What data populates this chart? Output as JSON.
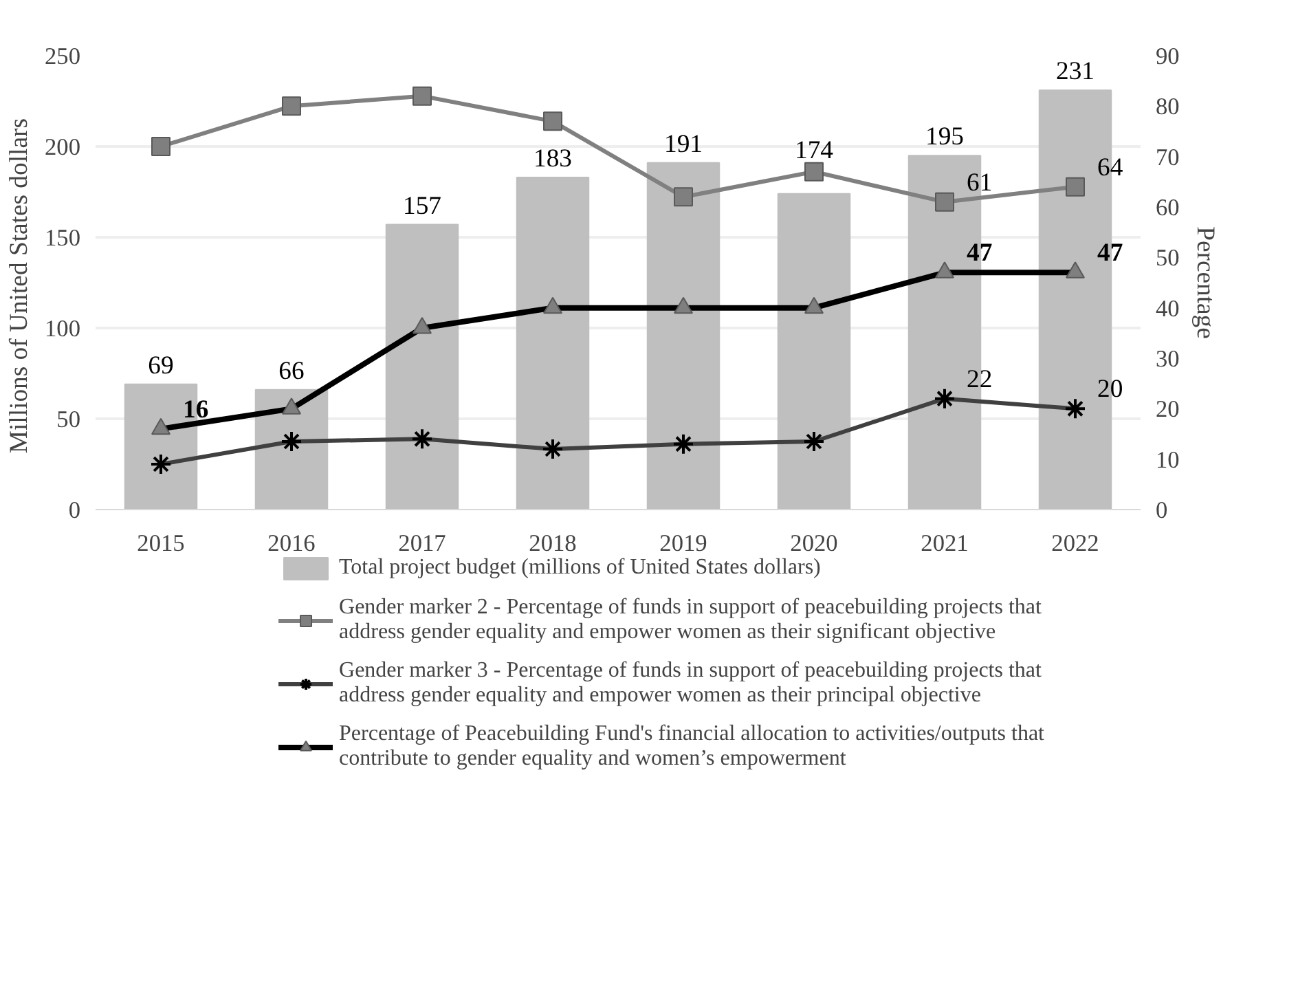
{
  "chart_data": {
    "type": "bar",
    "categories": [
      "2015",
      "2016",
      "2017",
      "2018",
      "2019",
      "2020",
      "2021",
      "2022"
    ],
    "ylabel": "Millions  of United States dollars",
    "y2label": "Percentage",
    "ylim": [
      0,
      250
    ],
    "yticks": [
      0,
      50,
      100,
      150,
      200,
      250
    ],
    "y2lim": [
      0,
      90
    ],
    "y2ticks": [
      0,
      10,
      20,
      30,
      40,
      50,
      60,
      70,
      80,
      90
    ],
    "grid": "y",
    "legend": "bottom",
    "series": [
      {
        "type": "bar",
        "name": "Total project budget (millions of United States dollars)",
        "color": "#bfbfbf",
        "values": [
          69,
          66,
          157,
          183,
          191,
          174,
          195,
          231
        ],
        "value_labels": [
          "69",
          "66",
          "157",
          "183",
          "191",
          "174",
          "195",
          "231"
        ]
      },
      {
        "type": "line",
        "axis": "y2",
        "marker": "square",
        "name": "Gender marker 2 - Percentage of funds in support of peacebuilding projects that address gender equality and empower women as their significant objective",
        "color": "#808080",
        "values": [
          72,
          80,
          82,
          77,
          62,
          67,
          61,
          64
        ],
        "value_labels": [
          null,
          null,
          null,
          null,
          null,
          null,
          "61",
          "64"
        ]
      },
      {
        "type": "line",
        "axis": "y2",
        "marker": "cross",
        "name": "Gender marker 3 - Percentage of funds in support of peacebuilding projects that address gender equality and empower women as their principal objective",
        "color": "#404040",
        "values": [
          9,
          13.5,
          14,
          12,
          13,
          13.5,
          22,
          20
        ],
        "value_labels": [
          null,
          null,
          null,
          null,
          null,
          null,
          "22",
          "20"
        ]
      },
      {
        "type": "line",
        "axis": "y2",
        "marker": "triangle",
        "name": "Percentage of Peacebuilding Fund's financial allocation to activities/outputs that contribute to gender equality and women’s empowerment",
        "color": "#000000",
        "values": [
          16,
          20,
          36,
          40,
          40,
          40,
          47,
          47
        ],
        "value_labels": [
          "16",
          null,
          null,
          null,
          null,
          null,
          "47",
          "47"
        ]
      }
    ]
  }
}
